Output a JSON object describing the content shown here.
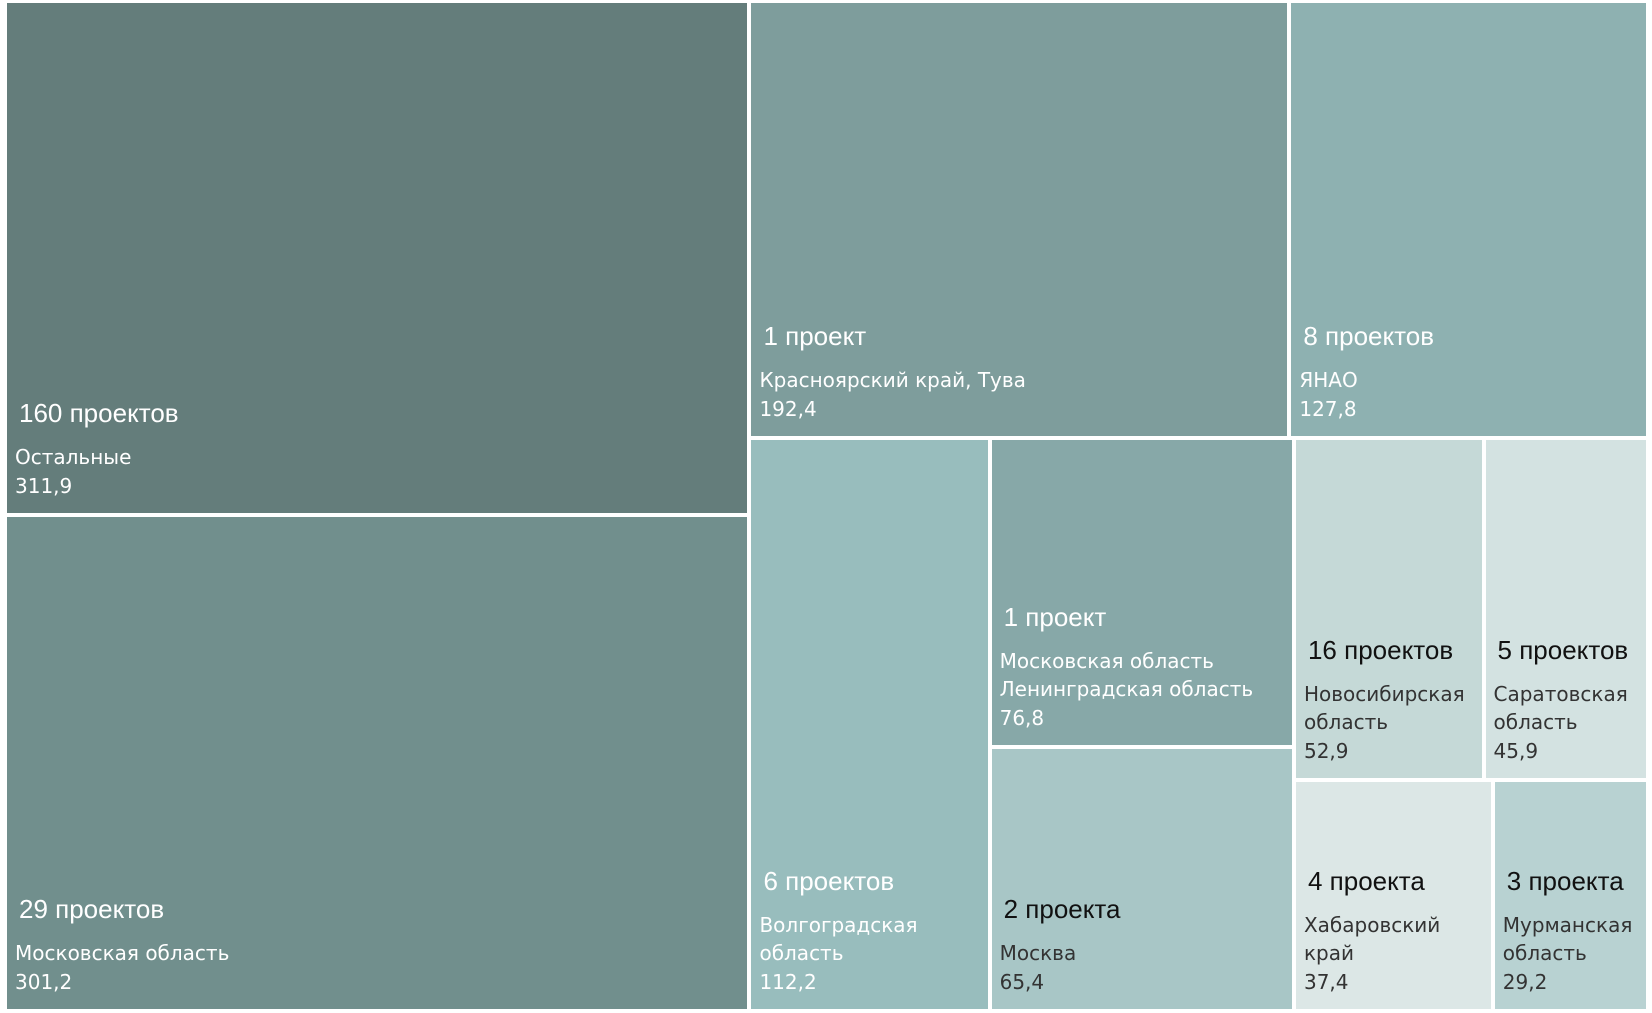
{
  "chart_data": {
    "type": "treemap",
    "categories": [
      "Остальные",
      "Московская область",
      "Красноярский край, Тува",
      "ЯНАО",
      "Волгоградская область",
      "Московская область\nЛенинградская область",
      "Москва",
      "Новосибирская область",
      "Саратовская область",
      "Хабаровский край",
      "Мурманская область"
    ],
    "project_labels": [
      "160 проектов",
      "29 проектов",
      "1 проект",
      "8 проектов",
      "6 проектов",
      "1 проект",
      "2 проекта",
      "16 проектов",
      "5 проектов",
      "4 проекта",
      "3 проекта"
    ],
    "values": [
      311.9,
      301.2,
      192.4,
      127.8,
      112.2,
      76.8,
      65.4,
      52.9,
      45.9,
      37.4,
      29.2
    ],
    "value_labels": [
      "311,9",
      "301,2",
      "192,4",
      "127,8",
      "112,2",
      "76,8",
      "65,4",
      "52,9",
      "45,9",
      "37,4",
      "29,2"
    ],
    "colors": [
      "#647d7b",
      "#718f8d",
      "#7e9d9c",
      "#8eb1b1",
      "#98bdbd",
      "#87a8a8",
      "#a8c6c6",
      "#c5d9d7",
      "#d3e2e1",
      "#dce7e6",
      "#b8d2d2"
    ]
  }
}
